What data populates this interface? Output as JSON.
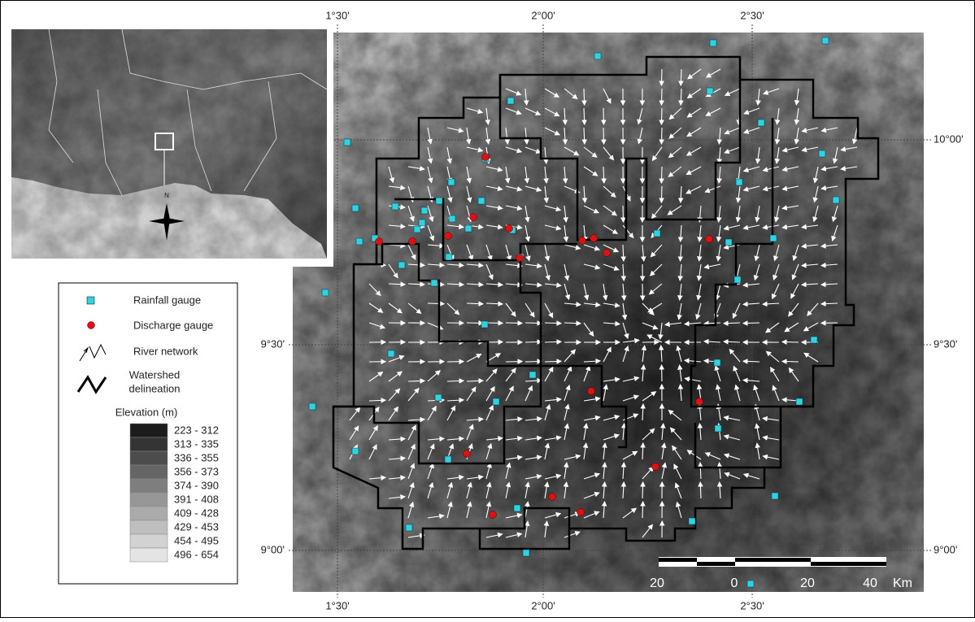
{
  "map": {
    "lon_labels": [
      "1°30'",
      "2°00'",
      "2°30'"
    ],
    "lat_labels": [
      "10°00'",
      "9°30'",
      "9°00'"
    ],
    "scale_bar": {
      "labels": [
        "20",
        "0",
        "20",
        "40"
      ],
      "unit": "Km"
    },
    "inset": {
      "north": "N"
    },
    "legend": {
      "rainfall": "Rainfall gauge",
      "discharge": "Discharge gauge",
      "river": "River network",
      "watershed": [
        "Watershed",
        "delineation"
      ],
      "elevation_title": "Elevation (m)",
      "classes": [
        {
          "label": "223 - 312",
          "color": "#1c1c1c"
        },
        {
          "label": "313 - 335",
          "color": "#343434"
        },
        {
          "label": "336 - 355",
          "color": "#4c4c4c"
        },
        {
          "label": "356 - 373",
          "color": "#656565"
        },
        {
          "label": "374 - 390",
          "color": "#7e7e7e"
        },
        {
          "label": "391 - 408",
          "color": "#979797"
        },
        {
          "label": "409 - 428",
          "color": "#ababab"
        },
        {
          "label": "429 - 453",
          "color": "#bfbfbf"
        },
        {
          "label": "454 - 495",
          "color": "#d2d2d2"
        },
        {
          "label": "496 - 654",
          "color": "#e4e4e4"
        }
      ]
    }
  }
}
